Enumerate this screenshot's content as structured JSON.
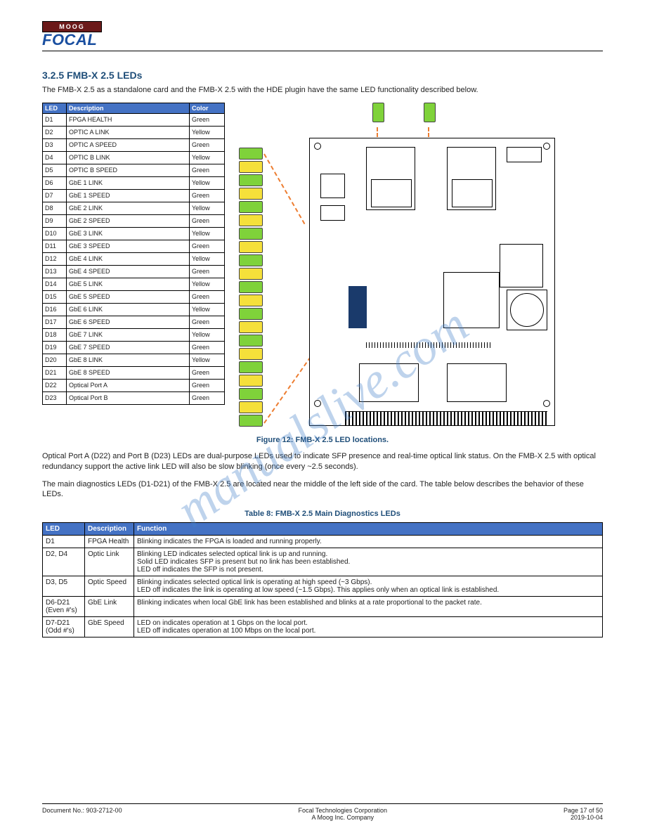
{
  "logo": {
    "brand_top": "MOOG",
    "brand_main": "FOCAL"
  },
  "section1": {
    "number_title": "3.2.5 FMB-X 2.5 LEDs",
    "intro": "The FMB-X 2.5 as a standalone card and the FMB-X 2.5 with the HDE plugin have the same LED functionality described below."
  },
  "led_table": {
    "headers": [
      "LED",
      "Description",
      "Color"
    ],
    "rows": [
      [
        "D1",
        "FPGA HEALTH",
        "Green"
      ],
      [
        "D2",
        "OPTIC A LINK",
        "Yellow"
      ],
      [
        "D3",
        "OPTIC A SPEED",
        "Green"
      ],
      [
        "D4",
        "OPTIC B LINK",
        "Yellow"
      ],
      [
        "D5",
        "OPTIC B SPEED",
        "Green"
      ],
      [
        "D6",
        "GbE 1 LINK",
        "Yellow"
      ],
      [
        "D7",
        "GbE 1 SPEED",
        "Green"
      ],
      [
        "D8",
        "GbE 2 LINK",
        "Yellow"
      ],
      [
        "D9",
        "GbE 2 SPEED",
        "Green"
      ],
      [
        "D10",
        "GbE 3 LINK",
        "Yellow"
      ],
      [
        "D11",
        "GbE 3 SPEED",
        "Green"
      ],
      [
        "D12",
        "GbE 4 LINK",
        "Yellow"
      ],
      [
        "D13",
        "GbE 4 SPEED",
        "Green"
      ],
      [
        "D14",
        "GbE 5 LINK",
        "Yellow"
      ],
      [
        "D15",
        "GbE 5 SPEED",
        "Green"
      ],
      [
        "D16",
        "GbE 6 LINK",
        "Yellow"
      ],
      [
        "D17",
        "GbE 6 SPEED",
        "Green"
      ],
      [
        "D18",
        "GbE 7 LINK",
        "Yellow"
      ],
      [
        "D19",
        "GbE 7 SPEED",
        "Green"
      ],
      [
        "D20",
        "GbE 8 LINK",
        "Yellow"
      ],
      [
        "D21",
        "GbE 8 SPEED",
        "Green"
      ],
      [
        "D22",
        "Optical Port A",
        "Green"
      ],
      [
        "D23",
        "Optical Port B",
        "Green"
      ]
    ]
  },
  "led_stack_colors": [
    "g",
    "y",
    "g",
    "y",
    "g",
    "y",
    "g",
    "y",
    "g",
    "y",
    "g",
    "y",
    "g",
    "y",
    "g",
    "y",
    "g",
    "y",
    "g",
    "y",
    "g"
  ],
  "top_led_colors": [
    "g",
    "g"
  ],
  "figure_caption": "Figure 12: FMB-X 2.5 LED locations.",
  "para1": "Optical Port A (D22) and Port B (D23) LEDs are dual-purpose LEDs used to indicate SFP presence and real-time optical link status. On the FMB-X 2.5 with optical redundancy support the active link LED will also be slow blinking (once every ~2.5 seconds).",
  "para2": "The main diagnostics LEDs (D1-D21) of the FMB-X 2.5 are located near the middle of the left side of the card. The table below describes the behavior of these LEDs.",
  "table2_caption": "Table 8: FMB-X 2.5 Main Diagnostics LEDs",
  "table2": {
    "headers": [
      "LED",
      "Description",
      "Function"
    ],
    "rows": [
      [
        "D1",
        "FPGA Health",
        "Blinking indicates the FPGA is loaded and running properly."
      ],
      [
        "D2, D4",
        "Optic Link",
        "Blinking LED indicates selected optical link is up and running.\nSolid LED indicates SFP is present but no link has been established.\nLED off indicates the SFP is not present."
      ],
      [
        "D3, D5",
        "Optic Speed",
        "Blinking indicates selected optical link is operating at high speed (~3 Gbps).\nLED off indicates the link is operating at low speed (~1.5 Gbps). This applies only when an optical link is established."
      ],
      [
        "D6-D21 (Even #'s)",
        "GbE Link",
        "Blinking indicates when local GbE link has been established and blinks at a rate proportional to the packet rate."
      ],
      [
        "D7-D21 (Odd #'s)",
        "GbE Speed",
        "LED on indicates operation at 1 Gbps on the local port.\nLED off indicates operation at 100 Mbps on the local port."
      ]
    ]
  },
  "footer": {
    "left": "Document No.: 903-2712-00",
    "center": "Focal Technologies Corporation\nA Moog Inc. Company",
    "right": "Page 17 of 50\n2019-10-04"
  },
  "watermark": "manualslive.com",
  "colors": {
    "header_blue": "#4472c4",
    "section_title": "#1f4e79",
    "led_green": "#7fd23a",
    "led_yellow": "#f5e03a",
    "callout": "#ed7d31"
  }
}
